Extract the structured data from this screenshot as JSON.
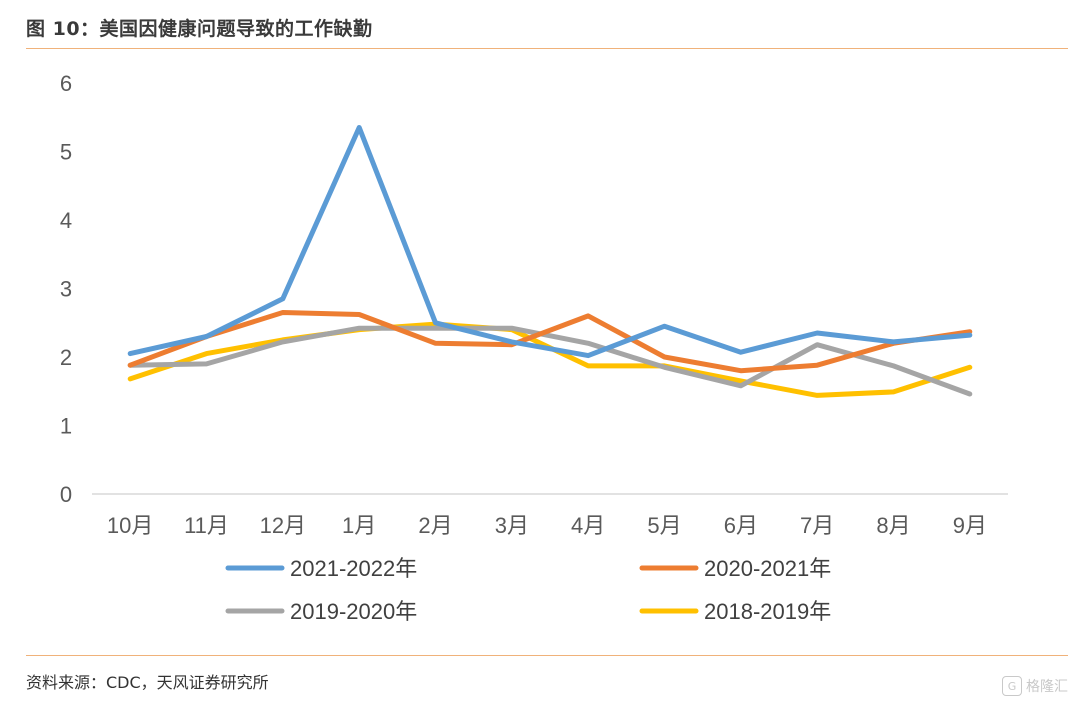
{
  "figure": {
    "title": "图 10：美国因健康问题导致的工作缺勤",
    "source": "资料来源：CDC，天风证券研究所",
    "watermark": "格隆汇"
  },
  "chart_data": {
    "type": "line",
    "categories": [
      "10月",
      "11月",
      "12月",
      "1月",
      "2月",
      "3月",
      "4月",
      "5月",
      "6月",
      "7月",
      "8月",
      "9月"
    ],
    "ylim": [
      0,
      6
    ],
    "yticks": [
      0,
      1,
      2,
      3,
      4,
      5,
      6
    ],
    "grid": false,
    "legend_position": "bottom",
    "series": [
      {
        "name": "2021-2022年",
        "color": "#5b9bd5",
        "values": [
          2.05,
          2.3,
          2.85,
          5.35,
          2.5,
          2.22,
          2.02,
          2.45,
          2.07,
          2.35,
          2.22,
          2.32
        ]
      },
      {
        "name": "2020-2021年",
        "color": "#ed7d31",
        "values": [
          1.88,
          2.3,
          2.65,
          2.62,
          2.2,
          2.18,
          2.6,
          2.0,
          1.8,
          1.88,
          2.2,
          2.37
        ]
      },
      {
        "name": "2019-2020年",
        "color": "#a5a5a5",
        "values": [
          1.88,
          1.9,
          2.22,
          2.42,
          2.42,
          2.42,
          2.2,
          1.85,
          1.58,
          2.18,
          1.87,
          1.46
        ]
      },
      {
        "name": "2018-2019年",
        "color": "#ffc000",
        "values": [
          1.68,
          2.05,
          2.25,
          2.4,
          2.48,
          2.4,
          1.87,
          1.87,
          1.65,
          1.44,
          1.49,
          1.85
        ]
      }
    ]
  }
}
